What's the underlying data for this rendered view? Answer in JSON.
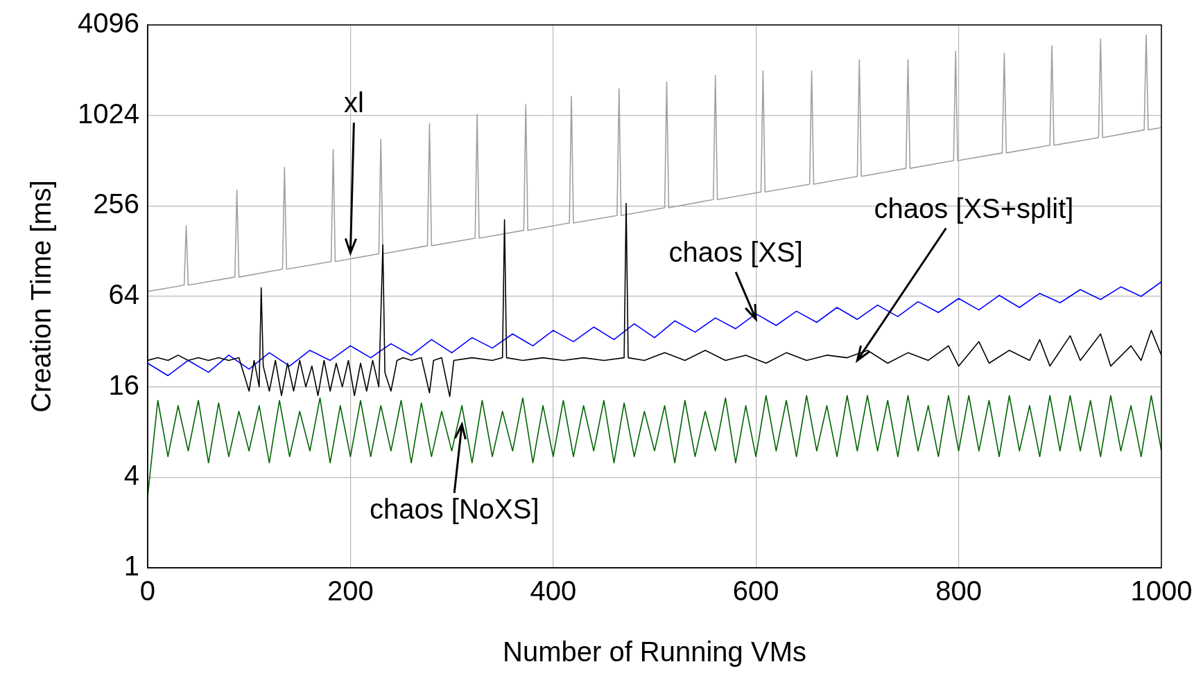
{
  "chart_data": {
    "type": "line",
    "xlabel": "Number of Running VMs",
    "ylabel": "Creation Time [ms]",
    "log": "y",
    "grid": true,
    "xlim": [
      0,
      1000
    ],
    "xticks": [
      0,
      200,
      400,
      600,
      800,
      1000
    ],
    "ylim": [
      1,
      4096
    ],
    "yticks": [
      1,
      4,
      16,
      64,
      256,
      1024,
      4096
    ],
    "series": [
      {
        "color": "#a0a0a0",
        "x": [
          0,
          36,
          38,
          40,
          86,
          88,
          90,
          133,
          135,
          137,
          181,
          183,
          185,
          228,
          230,
          232,
          276,
          278,
          280,
          323,
          325,
          327,
          371,
          373,
          375,
          416,
          418,
          420,
          463,
          465,
          467,
          510,
          512,
          514,
          558,
          560,
          562,
          605,
          607,
          609,
          653,
          655,
          657,
          700,
          702,
          704,
          748,
          750,
          752,
          795,
          797,
          799,
          843,
          845,
          847,
          890,
          892,
          894,
          938,
          940,
          942,
          983,
          985,
          987,
          1000
        ],
        "values": [
          69,
          76,
          189,
          76,
          86,
          326,
          86,
          97,
          461,
          97,
          109,
          608,
          109,
          123,
          709,
          123,
          139,
          900,
          139,
          156,
          1040,
          156,
          176,
          1210,
          176,
          197,
          1370,
          197,
          221,
          1540,
          221,
          249,
          1710,
          249,
          282,
          1890,
          282,
          317,
          2020,
          317,
          357,
          2020,
          357,
          402,
          2400,
          402,
          455,
          2400,
          455,
          512,
          2730,
          512,
          576,
          2650,
          576,
          648,
          2970,
          648,
          729,
          3300,
          729,
          820,
          3510,
          820,
          850
        ]
      },
      {
        "color": "#0000ff",
        "x": [
          0,
          20,
          40,
          60,
          80,
          100,
          120,
          140,
          160,
          180,
          200,
          220,
          240,
          260,
          280,
          300,
          320,
          340,
          360,
          380,
          400,
          420,
          440,
          460,
          480,
          500,
          520,
          540,
          560,
          580,
          600,
          620,
          640,
          660,
          680,
          700,
          720,
          740,
          760,
          780,
          800,
          820,
          840,
          860,
          880,
          900,
          920,
          940,
          960,
          980,
          1000
        ],
        "values": [
          23,
          19,
          24,
          20,
          26,
          21,
          27,
          22,
          28,
          24,
          30,
          25,
          31,
          26,
          33,
          27,
          34,
          29,
          36,
          30,
          38,
          32,
          40,
          33,
          42,
          34,
          44,
          37,
          46,
          39,
          49,
          41,
          51,
          43,
          54,
          45,
          56,
          47,
          59,
          50,
          62,
          52,
          65,
          54,
          67,
          58,
          71,
          61,
          74,
          64,
          80
        ]
      },
      {
        "color": "#000000",
        "x": [
          0,
          10,
          20,
          30,
          40,
          50,
          60,
          70,
          80,
          90,
          100,
          105,
          110,
          112,
          114,
          120,
          126,
          132,
          138,
          144,
          150,
          156,
          162,
          168,
          174,
          180,
          186,
          192,
          198,
          204,
          210,
          216,
          222,
          228,
          232,
          234,
          240,
          246,
          252,
          260,
          270,
          278,
          282,
          290,
          298,
          302,
          320,
          340,
          350,
          352,
          354,
          370,
          390,
          410,
          430,
          450,
          470,
          472,
          474,
          490,
          510,
          530,
          550,
          570,
          590,
          610,
          630,
          650,
          670,
          690,
          710,
          730,
          750,
          770,
          790,
          800,
          820,
          830,
          850,
          870,
          880,
          890,
          910,
          920,
          940,
          950,
          970,
          980,
          990,
          1000
        ],
        "values": [
          24,
          25,
          24,
          26,
          24,
          25,
          24,
          25,
          24,
          25,
          15,
          24,
          16,
          73,
          22,
          15,
          24,
          14,
          23,
          15,
          24,
          16,
          22,
          14,
          24,
          15,
          23,
          16,
          24,
          14,
          23,
          15,
          24,
          16,
          141,
          20,
          15,
          24,
          25,
          24,
          25,
          14.6,
          24,
          25,
          13.8,
          24,
          25,
          24,
          25,
          207,
          25,
          24,
          25,
          24,
          25,
          24,
          25,
          266,
          25,
          24,
          27,
          24,
          28,
          24,
          26,
          23,
          27,
          24,
          26,
          25,
          28,
          23,
          27,
          24,
          30,
          22,
          32,
          23,
          28,
          24,
          33,
          22,
          35,
          24,
          36,
          22,
          30,
          24,
          38,
          26
        ]
      },
      {
        "color": "#006400",
        "x": [
          0,
          10,
          20,
          30,
          40,
          50,
          60,
          70,
          80,
          90,
          100,
          110,
          120,
          130,
          140,
          150,
          160,
          170,
          180,
          190,
          200,
          210,
          220,
          230,
          240,
          250,
          260,
          270,
          280,
          290,
          300,
          310,
          320,
          330,
          340,
          350,
          360,
          370,
          380,
          390,
          400,
          410,
          420,
          430,
          440,
          450,
          460,
          470,
          480,
          490,
          500,
          510,
          520,
          530,
          540,
          550,
          560,
          570,
          580,
          590,
          600,
          610,
          620,
          630,
          640,
          650,
          660,
          670,
          680,
          690,
          700,
          710,
          720,
          730,
          740,
          750,
          760,
          770,
          780,
          790,
          800,
          810,
          820,
          830,
          840,
          850,
          860,
          870,
          880,
          890,
          900,
          910,
          920,
          930,
          940,
          950,
          960,
          970,
          980,
          990,
          1000
        ],
        "values": [
          3,
          13,
          5.5,
          12,
          6,
          13,
          5,
          12.5,
          5.5,
          11,
          6,
          12,
          5,
          13,
          5.5,
          11,
          6,
          13.5,
          5,
          12,
          5.5,
          13,
          5.5,
          12,
          6,
          13,
          5,
          12.5,
          5.5,
          11,
          6,
          12,
          5,
          13,
          5.5,
          11,
          6,
          13.5,
          5,
          12,
          5.5,
          13,
          5.5,
          12,
          6,
          13,
          5,
          12.5,
          5.5,
          11,
          6,
          12,
          5,
          13,
          5.5,
          11,
          6,
          13.5,
          5,
          12,
          5.5,
          14,
          6,
          13,
          5.5,
          14,
          6,
          12,
          5.5,
          14,
          6,
          14,
          6,
          13,
          5.5,
          14,
          6,
          12,
          5.5,
          14,
          6,
          14,
          6,
          13,
          5.5,
          14,
          6,
          12,
          5.5,
          14,
          6,
          14,
          6,
          13,
          5.5,
          14,
          6,
          12,
          5.5,
          14,
          6
        ]
      }
    ],
    "annotations": [
      "xl",
      "chaos [XS]",
      "chaos [XS+split]",
      {
        "text": "chaos [NoXS]",
        "x": 310,
        "y": 9
      }
    ]
  }
}
